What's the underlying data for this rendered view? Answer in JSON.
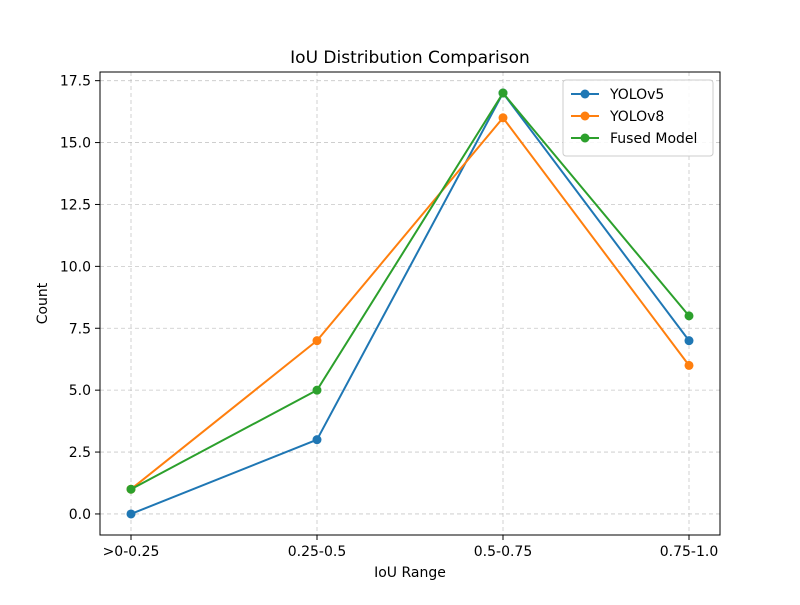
{
  "chart_data": {
    "type": "line",
    "title": "IoU Distribution Comparison",
    "xlabel": "IoU Range",
    "ylabel": "Count",
    "categories": [
      ">0-0.25",
      "0.25-0.5",
      "0.5-0.75",
      "0.75-1.0"
    ],
    "ylim": [
      -0.85,
      17.85
    ],
    "yticks": [
      0.0,
      2.5,
      5.0,
      7.5,
      10.0,
      12.5,
      15.0,
      17.5
    ],
    "ytick_labels": [
      "0.0",
      "2.5",
      "5.0",
      "7.5",
      "10.0",
      "12.5",
      "15.0",
      "17.5"
    ],
    "grid": true,
    "legend_position": "top-right",
    "series": [
      {
        "name": "YOLOv5",
        "values": [
          0,
          3,
          17,
          7
        ],
        "color": "#1f77b4"
      },
      {
        "name": "YOLOv8",
        "values": [
          1,
          7,
          16,
          6
        ],
        "color": "#ff7f0e"
      },
      {
        "name": "Fused Model",
        "values": [
          1,
          5,
          17,
          8
        ],
        "color": "#2ca02c"
      }
    ]
  }
}
